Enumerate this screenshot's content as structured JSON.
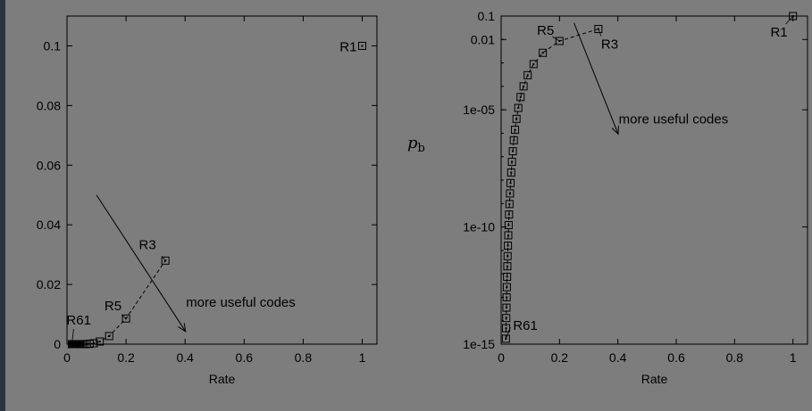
{
  "chart_data": [
    {
      "type": "scatter",
      "xlabel": "Rate",
      "ylabel": "",
      "xlim": [
        0,
        1.05
      ],
      "ylim": [
        0,
        0.11
      ],
      "yscale": "linear",
      "x_ticks": [
        "0",
        "0.2",
        "0.4",
        "0.6",
        "0.8",
        "1"
      ],
      "y_ticks": [
        "0",
        "0.02",
        "0.04",
        "0.06",
        "0.08",
        "0.1"
      ],
      "series": [
        {
          "marker": "square",
          "points": [
            {
              "x": 1.0,
              "y": 0.1
            },
            {
              "x": 0.3333,
              "y": 0.028
            },
            {
              "x": 0.2,
              "y": 0.0086
            },
            {
              "x": 0.1429,
              "y": 0.0027
            },
            {
              "x": 0.1111,
              "y": 0.00089
            },
            {
              "x": 0.0909,
              "y": 0.0003
            },
            {
              "x": 0.0769,
              "y": 0.0001
            },
            {
              "x": 0.0667,
              "y": 4e-05
            },
            {
              "x": 0.0588,
              "y": 1e-05
            },
            {
              "x": 0.0526,
              "y": 0.0
            },
            {
              "x": 0.0476,
              "y": 0.0
            },
            {
              "x": 0.0435,
              "y": 0.0
            },
            {
              "x": 0.04,
              "y": 0.0
            },
            {
              "x": 0.037,
              "y": 0.0
            },
            {
              "x": 0.0345,
              "y": 0.0
            },
            {
              "x": 0.0323,
              "y": 0.0
            },
            {
              "x": 0.0303,
              "y": 0.0
            },
            {
              "x": 0.0286,
              "y": 0.0
            },
            {
              "x": 0.027,
              "y": 0.0
            },
            {
              "x": 0.0256,
              "y": 0.0
            },
            {
              "x": 0.0244,
              "y": 0.0
            },
            {
              "x": 0.0233,
              "y": 0.0
            },
            {
              "x": 0.0222,
              "y": 0.0
            },
            {
              "x": 0.0213,
              "y": 0.0
            },
            {
              "x": 0.0204,
              "y": 0.0
            },
            {
              "x": 0.0196,
              "y": 0.0
            },
            {
              "x": 0.0189,
              "y": 0.0
            },
            {
              "x": 0.0182,
              "y": 0.0
            },
            {
              "x": 0.0175,
              "y": 0.0
            },
            {
              "x": 0.0169,
              "y": 0.0
            },
            {
              "x": 0.0164,
              "y": 0.0
            }
          ]
        }
      ],
      "annotations": [
        {
          "text": "R1",
          "x": 1.0,
          "y": 0.1
        },
        {
          "text": "R3",
          "x": 0.3333,
          "y": 0.028
        },
        {
          "text": "R5",
          "x": 0.2,
          "y": 0.0086
        },
        {
          "text": "R61",
          "x": 0.0164,
          "y": 0.0
        },
        {
          "text": "more useful codes",
          "arrow_from": [
            0.1,
            0.05
          ],
          "arrow_to": [
            0.4,
            0.0045
          ]
        }
      ]
    },
    {
      "type": "scatter",
      "xlabel": "Rate",
      "ylabel": "p_b",
      "xlim": [
        0,
        1.05
      ],
      "ylim": [
        1e-15,
        0.1
      ],
      "yscale": "log",
      "x_ticks": [
        "0",
        "0.2",
        "0.4",
        "0.6",
        "0.8",
        "1"
      ],
      "y_ticks": [
        "1e-15",
        "1e-10",
        "1e-05",
        "0.01",
        "0.1"
      ],
      "series": [
        {
          "marker": "square",
          "points": [
            {
              "x": 1.0,
              "y": 0.1
            },
            {
              "x": 0.3333,
              "y": 0.028
            },
            {
              "x": 0.2,
              "y": 0.0086
            },
            {
              "x": 0.1429,
              "y": 0.0027
            },
            {
              "x": 0.1111,
              "y": 0.00089
            },
            {
              "x": 0.0909,
              "y": 0.0003
            },
            {
              "x": 0.0769,
              "y": 0.0001
            },
            {
              "x": 0.0667,
              "y": 3.5e-05
            },
            {
              "x": 0.0588,
              "y": 1.2e-05
            },
            {
              "x": 0.0526,
              "y": 4.1e-06
            },
            {
              "x": 0.0476,
              "y": 1.4e-06
            },
            {
              "x": 0.0435,
              "y": 5e-07
            },
            {
              "x": 0.04,
              "y": 1.7e-07
            },
            {
              "x": 0.037,
              "y": 6e-08
            },
            {
              "x": 0.0345,
              "y": 2.1e-08
            },
            {
              "x": 0.0323,
              "y": 7.5e-09
            },
            {
              "x": 0.0303,
              "y": 2.7e-09
            },
            {
              "x": 0.0286,
              "y": 9.5e-10
            },
            {
              "x": 0.027,
              "y": 3.4e-10
            },
            {
              "x": 0.0256,
              "y": 1.2e-10
            },
            {
              "x": 0.0244,
              "y": 4.4e-11
            },
            {
              "x": 0.0233,
              "y": 1.6e-11
            },
            {
              "x": 0.0222,
              "y": 5.7e-12
            },
            {
              "x": 0.0213,
              "y": 2.1e-12
            },
            {
              "x": 0.0204,
              "y": 7.5e-13
            },
            {
              "x": 0.0196,
              "y": 2.7e-13
            },
            {
              "x": 0.0189,
              "y": 1e-13
            },
            {
              "x": 0.0182,
              "y": 3.6e-14
            },
            {
              "x": 0.0175,
              "y": 1.3e-14
            },
            {
              "x": 0.0169,
              "y": 4.8e-15
            },
            {
              "x": 0.0164,
              "y": 1.7e-15
            }
          ]
        }
      ],
      "annotations": [
        {
          "text": "R1",
          "x": 1.0,
          "y": 0.1
        },
        {
          "text": "R3",
          "x": 0.3333,
          "y": 0.028
        },
        {
          "text": "R5",
          "x": 0.2,
          "y": 0.0086
        },
        {
          "text": "R61",
          "x": 0.0164,
          "y": 1.7e-15
        },
        {
          "text": "more useful codes",
          "arrow_from": [
            0.25,
            0.05
          ],
          "arrow_to": [
            0.4,
            1e-06
          ]
        }
      ]
    }
  ]
}
